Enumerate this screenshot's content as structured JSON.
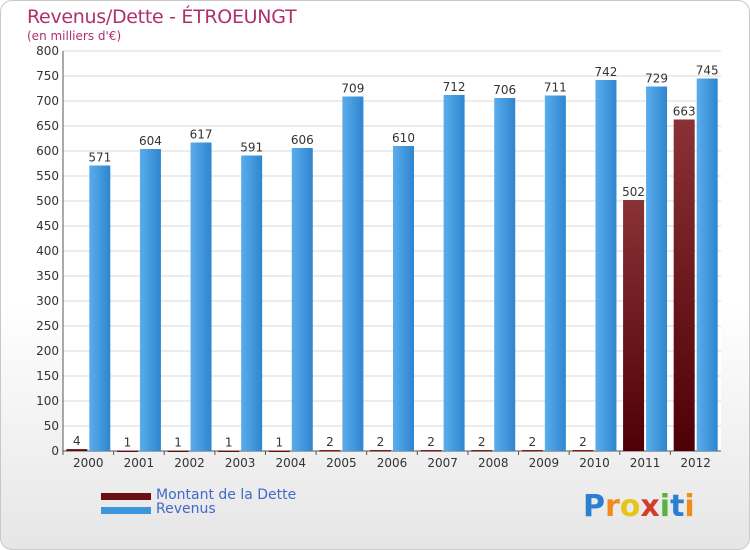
{
  "chart_data": {
    "type": "bar",
    "title": "Revenus/Dette - ÉTROEUNGT",
    "subtitle": "(en milliers d'€)",
    "categories": [
      "2000",
      "2001",
      "2002",
      "2003",
      "2004",
      "2005",
      "2006",
      "2007",
      "2008",
      "2009",
      "2010",
      "2011",
      "2012"
    ],
    "series": [
      {
        "name": "Montant de la Dette",
        "values": [
          4,
          1,
          1,
          1,
          1,
          2,
          2,
          2,
          2,
          2,
          2,
          502,
          663
        ],
        "color": "#6b0f14"
      },
      {
        "name": "Revenus",
        "values": [
          571,
          604,
          617,
          591,
          606,
          709,
          610,
          712,
          706,
          711,
          742,
          729,
          745
        ],
        "color": "#3d95dc"
      }
    ],
    "ylim": [
      0,
      800
    ],
    "yticks": [
      0,
      50,
      100,
      150,
      200,
      250,
      300,
      350,
      400,
      450,
      500,
      550,
      600,
      650,
      700,
      750,
      800
    ],
    "grid": true,
    "legend_position": "bottom-left"
  },
  "legend": {
    "debt_label": "Montant de la Dette",
    "revenue_label": "Revenus"
  },
  "logo": {
    "letters": [
      "P",
      "r",
      "o",
      "x",
      "i",
      "t",
      "i"
    ],
    "colors": [
      "#2a7fd0",
      "#f08c1e",
      "#e8c318",
      "#d23c2c",
      "#58b23c",
      "#2a7fd0",
      "#f08c1e"
    ]
  }
}
